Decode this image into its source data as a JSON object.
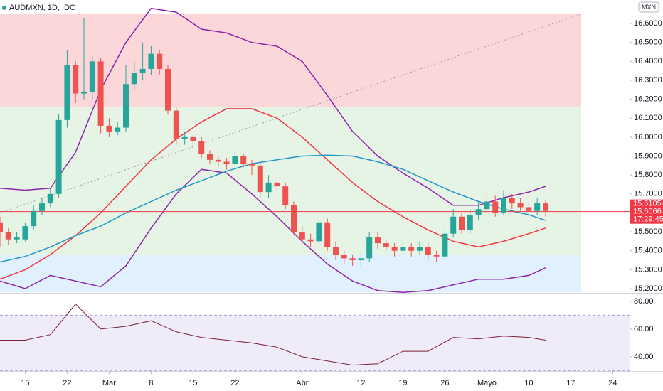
{
  "chart_data": [
    {
      "type": "candlestick",
      "title": "AUDMXN, 1D, IDC",
      "currency": "MXN",
      "xlim": [
        0,
        75
      ],
      "ylim": [
        15.1775,
        16.724
      ],
      "yticks": [
        {
          "value": 15.2,
          "label": "15.2000"
        },
        {
          "value": 15.3,
          "label": "15.3000"
        },
        {
          "value": 15.4,
          "label": "15.4000"
        },
        {
          "value": 15.5,
          "label": "15.5000"
        },
        {
          "value": 15.6,
          "label": "15.6000"
        },
        {
          "value": 15.7,
          "label": "15.7000"
        },
        {
          "value": 15.8,
          "label": "15.8000"
        },
        {
          "value": 15.9,
          "label": "15.9000"
        },
        {
          "value": 16.0,
          "label": "16.0000"
        },
        {
          "value": 16.1,
          "label": "16.1000"
        },
        {
          "value": 16.2,
          "label": "16.2000"
        },
        {
          "value": 16.3,
          "label": "16.3000"
        },
        {
          "value": 16.4,
          "label": "16.4000"
        },
        {
          "value": 16.5,
          "label": "16.5000"
        },
        {
          "value": 16.6,
          "label": "16.6000"
        }
      ],
      "grid": false,
      "up_color": "#26a69a",
      "down_color": "#ef5350",
      "open": [
        15.55,
        15.5,
        15.46,
        15.46,
        15.53,
        15.61,
        15.65,
        15.7,
        16.09,
        16.38,
        16.23,
        16.24,
        16.4,
        16.06,
        16.03,
        16.05,
        16.28,
        16.34,
        16.36,
        16.44,
        16.36,
        16.14,
        15.99,
        16.0,
        15.98,
        15.91,
        15.88,
        15.87,
        15.86,
        15.9,
        15.86,
        15.85,
        15.71,
        15.76,
        15.74,
        15.64,
        15.5,
        15.46,
        15.45,
        15.55,
        15.42,
        15.38,
        15.36,
        15.35,
        15.36,
        15.47,
        15.44,
        15.42,
        15.4,
        15.42,
        15.4,
        15.42,
        15.38,
        15.37,
        15.49,
        15.58,
        15.51,
        15.59,
        15.62,
        15.66,
        15.6,
        15.68,
        15.65,
        15.63,
        15.61,
        15.65
      ],
      "high": [
        15.58,
        15.52,
        15.5,
        15.55,
        15.64,
        15.68,
        15.73,
        16.12,
        16.46,
        16.4,
        16.63,
        16.43,
        16.42,
        16.1,
        16.08,
        16.38,
        16.4,
        16.5,
        16.48,
        16.46,
        16.38,
        16.16,
        16.03,
        16.02,
        16.0,
        15.93,
        15.9,
        15.89,
        15.93,
        15.91,
        15.88,
        15.87,
        15.8,
        15.78,
        15.76,
        15.66,
        15.53,
        15.49,
        15.58,
        15.57,
        15.45,
        15.4,
        15.38,
        15.4,
        15.5,
        15.5,
        15.46,
        15.44,
        15.45,
        15.44,
        15.45,
        15.44,
        15.4,
        15.52,
        15.62,
        15.6,
        15.62,
        15.66,
        15.7,
        15.69,
        15.72,
        15.7,
        15.68,
        15.66,
        15.68,
        15.67
      ],
      "low": [
        15.42,
        15.43,
        15.44,
        15.45,
        15.51,
        15.59,
        15.63,
        15.68,
        16.05,
        16.18,
        16.2,
        16.2,
        16.02,
        16.0,
        16.01,
        16.03,
        16.25,
        16.3,
        16.33,
        16.33,
        16.12,
        15.96,
        15.96,
        15.95,
        15.89,
        15.86,
        15.84,
        15.83,
        15.84,
        15.84,
        15.8,
        15.68,
        15.68,
        15.71,
        15.62,
        15.48,
        15.43,
        15.42,
        15.43,
        15.4,
        15.35,
        15.33,
        15.32,
        15.31,
        15.34,
        15.41,
        15.4,
        15.37,
        15.38,
        15.37,
        15.38,
        15.35,
        15.34,
        15.35,
        15.47,
        15.49,
        15.49,
        15.56,
        15.6,
        15.58,
        15.59,
        15.62,
        15.61,
        15.59,
        15.59,
        15.58
      ],
      "close": [
        15.5,
        15.46,
        15.47,
        15.53,
        15.61,
        15.65,
        15.7,
        16.09,
        16.38,
        16.23,
        16.24,
        16.4,
        16.06,
        16.03,
        16.05,
        16.28,
        16.34,
        16.36,
        16.44,
        16.36,
        16.14,
        15.99,
        16.0,
        15.98,
        15.91,
        15.88,
        15.87,
        15.86,
        15.9,
        15.86,
        15.85,
        15.71,
        15.76,
        15.74,
        15.64,
        15.5,
        15.46,
        15.45,
        15.55,
        15.42,
        15.38,
        15.36,
        15.35,
        15.36,
        15.47,
        15.44,
        15.42,
        15.4,
        15.42,
        15.4,
        15.42,
        15.38,
        15.37,
        15.49,
        15.58,
        15.51,
        15.59,
        15.62,
        15.66,
        15.6,
        15.68,
        15.65,
        15.63,
        15.61,
        15.65,
        15.61
      ],
      "zones": [
        {
          "from": 16.65,
          "to": 16.16,
          "color": "rgba(242,54,69,0.2)"
        },
        {
          "from": 16.16,
          "to": 15.38,
          "color": "rgba(76,175,80,0.14)"
        },
        {
          "from": 15.38,
          "to": 15.18,
          "color": "rgba(33,150,243,0.14)"
        }
      ],
      "trendline": {
        "x": [
          0,
          69.2
        ],
        "values": [
          15.6,
          16.65
        ],
        "color": "#9598a1"
      },
      "overlays": [
        {
          "color": "#8e24aa",
          "x": [
            0,
            3,
            6,
            9,
            12,
            15,
            18,
            21,
            24,
            27,
            30,
            33,
            36,
            39,
            42,
            45,
            48,
            51,
            54,
            57,
            60,
            63,
            65
          ],
          "values": [
            15.73,
            15.72,
            15.73,
            15.92,
            16.25,
            16.5,
            16.68,
            16.66,
            16.57,
            16.55,
            16.5,
            16.48,
            16.4,
            16.22,
            16.03,
            15.9,
            15.81,
            15.73,
            15.64,
            15.64,
            15.68,
            15.71,
            15.74
          ]
        },
        {
          "color": "#8e24aa",
          "x": [
            0,
            3,
            6,
            9,
            12,
            15,
            18,
            21,
            24,
            27,
            30,
            33,
            36,
            39,
            42,
            45,
            48,
            51,
            54,
            57,
            60,
            63,
            65
          ],
          "values": [
            15.24,
            15.2,
            15.27,
            15.24,
            15.21,
            15.32,
            15.52,
            15.7,
            15.83,
            15.81,
            15.7,
            15.58,
            15.45,
            15.33,
            15.24,
            15.19,
            15.18,
            15.19,
            15.22,
            15.25,
            15.25,
            15.27,
            15.31
          ]
        },
        {
          "color": "#f23645",
          "x": [
            0,
            3,
            6,
            9,
            12,
            15,
            18,
            21,
            24,
            27,
            30,
            33,
            36,
            39,
            42,
            45,
            48,
            51,
            54,
            57,
            60,
            63,
            65
          ],
          "values": [
            15.25,
            15.3,
            15.38,
            15.48,
            15.6,
            15.74,
            15.88,
            15.99,
            16.08,
            16.15,
            16.15,
            16.1,
            16.0,
            15.88,
            15.76,
            15.66,
            15.58,
            15.51,
            15.45,
            15.42,
            15.45,
            15.49,
            15.52
          ]
        },
        {
          "color": "#2196c8",
          "x": [
            0,
            3,
            6,
            9,
            12,
            15,
            18,
            21,
            24,
            27,
            30,
            33,
            36,
            39,
            42,
            45,
            48,
            51,
            54,
            57,
            60,
            63,
            65
          ],
          "values": [
            15.34,
            15.37,
            15.42,
            15.48,
            15.53,
            15.6,
            15.66,
            15.72,
            15.77,
            15.82,
            15.86,
            15.88,
            15.9,
            15.905,
            15.9,
            15.87,
            15.83,
            15.77,
            15.71,
            15.66,
            15.62,
            15.59,
            15.56
          ]
        }
      ],
      "last_price": 15.6066,
      "price_tags": [
        15.6105,
        15.6066
      ],
      "countdown": "17:29:45",
      "price_line_color": "#f23645"
    },
    {
      "type": "line",
      "xlim": [
        0,
        75
      ],
      "ylim": [
        29.7,
        85.6
      ],
      "yticks": [
        {
          "value": 40,
          "label": "40.00"
        },
        {
          "value": 60,
          "label": "60.00"
        },
        {
          "value": 80,
          "label": "80.00"
        }
      ],
      "levels": [
        30,
        70
      ],
      "level_fill": "rgba(126,87,194,0.12)",
      "xticks": [
        {
          "value": 3,
          "label": "15"
        },
        {
          "value": 8,
          "label": "22"
        },
        {
          "value": 13,
          "label": "Mar"
        },
        {
          "value": 18,
          "label": "8"
        },
        {
          "value": 23,
          "label": "15"
        },
        {
          "value": 28,
          "label": "22"
        },
        {
          "value": 36,
          "label": "Abr"
        },
        {
          "value": 43,
          "label": "12"
        },
        {
          "value": 48,
          "label": "19"
        },
        {
          "value": 53,
          "label": "26"
        },
        {
          "value": 58,
          "label": "Mayo"
        },
        {
          "value": 63,
          "label": "10"
        },
        {
          "value": 68,
          "label": "17"
        },
        {
          "value": 73,
          "label": "24"
        }
      ],
      "series": [
        {
          "color": "#7b1f3a",
          "x": [
            0,
            3,
            6,
            9,
            12,
            15,
            18,
            21,
            24,
            27,
            30,
            33,
            36,
            39,
            42,
            45,
            48,
            51,
            54,
            57,
            60,
            63,
            65
          ],
          "values": [
            52,
            52,
            56,
            78,
            60,
            62,
            66,
            58,
            54,
            52,
            50,
            47,
            40,
            37,
            34,
            35,
            44,
            44,
            54,
            53,
            55,
            54,
            52
          ]
        }
      ]
    }
  ]
}
